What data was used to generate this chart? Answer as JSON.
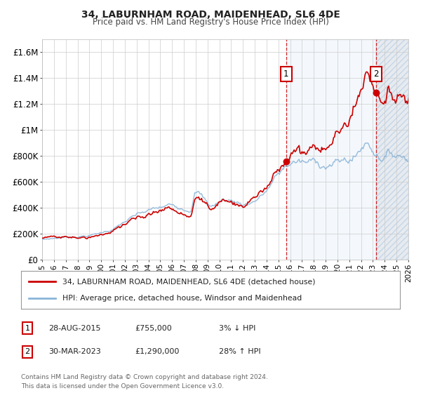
{
  "title": "34, LABURNHAM ROAD, MAIDENHEAD, SL6 4DE",
  "subtitle": "Price paid vs. HM Land Registry's House Price Index (HPI)",
  "xlim": [
    1995,
    2026
  ],
  "ylim": [
    0,
    1700000
  ],
  "yticks": [
    0,
    200000,
    400000,
    600000,
    800000,
    1000000,
    1200000,
    1400000,
    1600000
  ],
  "ytick_labels": [
    "£0",
    "£200K",
    "£400K",
    "£600K",
    "£800K",
    "£1M",
    "£1.2M",
    "£1.4M",
    "£1.6M"
  ],
  "hpi_color": "#8ab4d8",
  "price_color": "#cc0000",
  "bg_color": "#ffffff",
  "grid_color": "#cccccc",
  "sale1_x": 2015.65,
  "sale1_y": 755000,
  "sale1_label": "1",
  "sale1_date": "28-AUG-2015",
  "sale1_price": "£755,000",
  "sale1_hpi": "3% ↓ HPI",
  "sale2_x": 2023.25,
  "sale2_y": 1290000,
  "sale2_label": "2",
  "sale2_date": "30-MAR-2023",
  "sale2_price": "£1,290,000",
  "sale2_hpi": "28% ↑ HPI",
  "legend_label1": "34, LABURNHAM ROAD, MAIDENHEAD, SL6 4DE (detached house)",
  "legend_label2": "HPI: Average price, detached house, Windsor and Maidenhead",
  "footnote1": "Contains HM Land Registry data © Crown copyright and database right 2024.",
  "footnote2": "This data is licensed under the Open Government Licence v3.0.",
  "shade_color": "#ddeeff",
  "hatch_color": "#c0d8f0"
}
